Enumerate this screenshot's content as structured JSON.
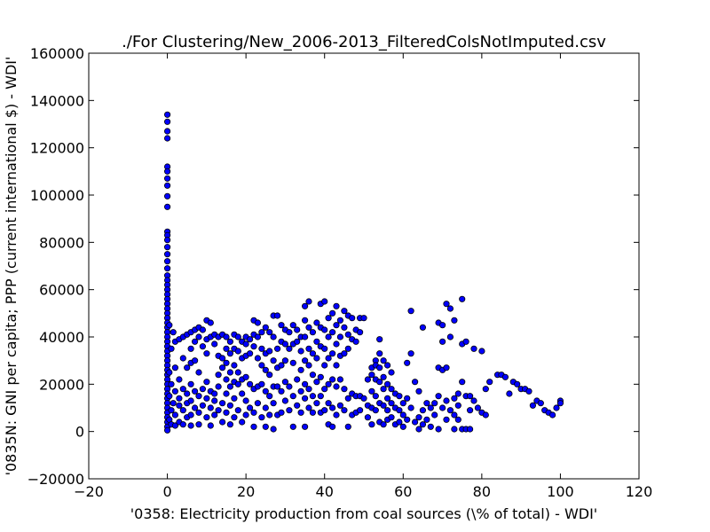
{
  "chart_data": {
    "type": "scatter",
    "title": "./For Clustering/New_2006-2013_FilteredColsNotImputed.csv",
    "xlabel": "'0358: Electricity production from coal sources  (\\% of total) - WDI'",
    "ylabel": "'0835N: GNI per capita; PPP  (current international $) - WDI'",
    "xlim": [
      -20,
      120
    ],
    "ylim": [
      -20000,
      160000
    ],
    "x_ticks": [
      "−20",
      "0",
      "20",
      "40",
      "60",
      "80",
      "100",
      "120"
    ],
    "y_ticks": [
      "−20000",
      "0",
      "20000",
      "40000",
      "60000",
      "80000",
      "100000",
      "120000",
      "140000",
      "160000"
    ],
    "grid": false,
    "legend": "none",
    "marker_color": "#0000ff",
    "marker_edge": "#000000",
    "points": [
      [
        0,
        134000
      ],
      [
        0,
        131000
      ],
      [
        0,
        127000
      ],
      [
        0,
        124000
      ],
      [
        0,
        112000
      ],
      [
        0,
        110000
      ],
      [
        0,
        107000
      ],
      [
        0,
        104000
      ],
      [
        0,
        99500
      ],
      [
        0,
        95000
      ],
      [
        0,
        84500
      ],
      [
        0,
        83000
      ],
      [
        0,
        81000
      ],
      [
        0,
        78000
      ],
      [
        0,
        75000
      ],
      [
        0,
        72000
      ],
      [
        0,
        69000
      ],
      [
        0,
        66000
      ],
      [
        0,
        64000
      ],
      [
        0,
        62000
      ],
      [
        0,
        60000
      ],
      [
        0,
        58000
      ],
      [
        0,
        56000
      ],
      [
        0,
        54000
      ],
      [
        0,
        52000
      ],
      [
        0,
        50000
      ],
      [
        0,
        48000
      ],
      [
        0,
        46000
      ],
      [
        0,
        44000
      ],
      [
        0,
        42000
      ],
      [
        0,
        40000
      ],
      [
        0,
        38000
      ],
      [
        0,
        36000
      ],
      [
        0,
        34000
      ],
      [
        0,
        32000
      ],
      [
        0,
        30000
      ],
      [
        0,
        28000
      ],
      [
        0,
        26000
      ],
      [
        0,
        24000
      ],
      [
        0,
        22000
      ],
      [
        0,
        20000
      ],
      [
        0,
        18000
      ],
      [
        0,
        16000
      ],
      [
        0,
        14000
      ],
      [
        0,
        12000
      ],
      [
        0,
        10000
      ],
      [
        0,
        8000
      ],
      [
        0,
        6000
      ],
      [
        0,
        4000
      ],
      [
        0,
        2000
      ],
      [
        0,
        500
      ],
      [
        0.5,
        45000
      ],
      [
        0.5,
        25000
      ],
      [
        0.5,
        15000
      ],
      [
        0.5,
        5000
      ],
      [
        1,
        35000
      ],
      [
        1,
        20000
      ],
      [
        1,
        9000
      ],
      [
        1,
        3000
      ],
      [
        1.5,
        42000
      ],
      [
        1.5,
        12000
      ],
      [
        2,
        38000
      ],
      [
        2,
        27000
      ],
      [
        2,
        17000
      ],
      [
        2,
        7000
      ],
      [
        2,
        2500
      ],
      [
        3,
        39000
      ],
      [
        3,
        22000
      ],
      [
        3,
        14000
      ],
      [
        3,
        11000
      ],
      [
        3,
        4000
      ],
      [
        4,
        40000
      ],
      [
        4,
        31000
      ],
      [
        4,
        18000
      ],
      [
        4,
        9000
      ],
      [
        4,
        3000
      ],
      [
        5,
        41000
      ],
      [
        5,
        27000
      ],
      [
        5,
        16000
      ],
      [
        5,
        12000
      ],
      [
        5,
        6000
      ],
      [
        6,
        42000
      ],
      [
        6,
        35000
      ],
      [
        6,
        29000
      ],
      [
        6,
        20000
      ],
      [
        6,
        13000
      ],
      [
        6,
        7000
      ],
      [
        6,
        2500
      ],
      [
        7,
        43000
      ],
      [
        7,
        38000
      ],
      [
        7,
        30000
      ],
      [
        7,
        17000
      ],
      [
        7,
        10000
      ],
      [
        8,
        44000
      ],
      [
        8,
        40000
      ],
      [
        8,
        25000
      ],
      [
        8,
        15000
      ],
      [
        8,
        8000
      ],
      [
        8,
        3000
      ],
      [
        9,
        43000
      ],
      [
        9,
        36000
      ],
      [
        9,
        18000
      ],
      [
        9,
        11000
      ],
      [
        10,
        47000
      ],
      [
        10,
        39000
      ],
      [
        10,
        33000
      ],
      [
        10,
        21000
      ],
      [
        10,
        14000
      ],
      [
        10,
        6000
      ],
      [
        11,
        46000
      ],
      [
        11,
        40000
      ],
      [
        11,
        17000
      ],
      [
        11,
        10000
      ],
      [
        11,
        2500
      ],
      [
        12,
        41000
      ],
      [
        12,
        37000
      ],
      [
        12,
        16000
      ],
      [
        12,
        13000
      ],
      [
        12,
        7000
      ],
      [
        13,
        40000
      ],
      [
        13,
        32000
      ],
      [
        13,
        24000
      ],
      [
        13,
        19000
      ],
      [
        13,
        9000
      ],
      [
        14,
        41000
      ],
      [
        14,
        31000
      ],
      [
        14,
        27000
      ],
      [
        14,
        12000
      ],
      [
        14,
        4000
      ],
      [
        15,
        40000
      ],
      [
        15,
        35000
      ],
      [
        15,
        29000
      ],
      [
        15,
        22000
      ],
      [
        15,
        16000
      ],
      [
        15,
        8000
      ],
      [
        16,
        38000
      ],
      [
        16,
        33000
      ],
      [
        16,
        25000
      ],
      [
        16,
        19000
      ],
      [
        16,
        11000
      ],
      [
        16,
        3000
      ],
      [
        17,
        41000
      ],
      [
        17,
        35000
      ],
      [
        17,
        28000
      ],
      [
        17,
        21000
      ],
      [
        17,
        14000
      ],
      [
        17,
        6000
      ],
      [
        18,
        40000
      ],
      [
        18,
        34000
      ],
      [
        18,
        25000
      ],
      [
        18,
        20000
      ],
      [
        18,
        9000
      ],
      [
        19,
        38000
      ],
      [
        19,
        31000
      ],
      [
        19,
        22000
      ],
      [
        19,
        16000
      ],
      [
        19,
        4000
      ],
      [
        20,
        40000
      ],
      [
        20,
        37000
      ],
      [
        20,
        32000
      ],
      [
        20,
        23000
      ],
      [
        20,
        13000
      ],
      [
        20,
        7000
      ],
      [
        21,
        39000
      ],
      [
        21,
        33000
      ],
      [
        21,
        20000
      ],
      [
        21,
        10000
      ],
      [
        22,
        47000
      ],
      [
        22,
        41000
      ],
      [
        22,
        36000
      ],
      [
        22,
        18000
      ],
      [
        22,
        8000
      ],
      [
        22,
        2000
      ],
      [
        23,
        46000
      ],
      [
        23,
        40000
      ],
      [
        23,
        31000
      ],
      [
        23,
        19000
      ],
      [
        23,
        12000
      ],
      [
        24,
        42000
      ],
      [
        24,
        35000
      ],
      [
        24,
        28000
      ],
      [
        24,
        20000
      ],
      [
        24,
        6000
      ],
      [
        25,
        44000
      ],
      [
        25,
        33000
      ],
      [
        25,
        26000
      ],
      [
        25,
        17000
      ],
      [
        25,
        10000
      ],
      [
        25,
        2000
      ],
      [
        26,
        42000
      ],
      [
        26,
        34000
      ],
      [
        26,
        24000
      ],
      [
        26,
        15000
      ],
      [
        26,
        7000
      ],
      [
        27,
        49000
      ],
      [
        27,
        40000
      ],
      [
        27,
        30000
      ],
      [
        27,
        19000
      ],
      [
        27,
        12000
      ],
      [
        27,
        1000
      ],
      [
        28,
        49000
      ],
      [
        28,
        35000
      ],
      [
        28,
        27000
      ],
      [
        28,
        19000
      ],
      [
        28,
        7000
      ],
      [
        29,
        45000
      ],
      [
        29,
        38000
      ],
      [
        29,
        28000
      ],
      [
        29,
        17000
      ],
      [
        29,
        8000
      ],
      [
        30,
        43000
      ],
      [
        30,
        37000
      ],
      [
        30,
        30000
      ],
      [
        30,
        21000
      ],
      [
        30,
        13000
      ],
      [
        31,
        42000
      ],
      [
        31,
        35000
      ],
      [
        31,
        19000
      ],
      [
        31,
        9000
      ],
      [
        32,
        45000
      ],
      [
        32,
        37000
      ],
      [
        32,
        29000
      ],
      [
        32,
        15000
      ],
      [
        32,
        2000
      ],
      [
        33,
        43000
      ],
      [
        33,
        38000
      ],
      [
        33,
        22000
      ],
      [
        33,
        11000
      ],
      [
        34,
        40000
      ],
      [
        34,
        34000
      ],
      [
        34,
        26000
      ],
      [
        34,
        17000
      ],
      [
        34,
        8000
      ],
      [
        35,
        53000
      ],
      [
        35,
        47000
      ],
      [
        35,
        40000
      ],
      [
        35,
        30000
      ],
      [
        35,
        20000
      ],
      [
        35,
        14000
      ],
      [
        35,
        2000
      ],
      [
        36,
        55000
      ],
      [
        36,
        44000
      ],
      [
        36,
        35000
      ],
      [
        36,
        28000
      ],
      [
        36,
        18000
      ],
      [
        36,
        10000
      ],
      [
        37,
        42000
      ],
      [
        37,
        33000
      ],
      [
        37,
        24000
      ],
      [
        37,
        15000
      ],
      [
        37,
        8000
      ],
      [
        38,
        46000
      ],
      [
        38,
        38000
      ],
      [
        38,
        31000
      ],
      [
        38,
        21000
      ],
      [
        38,
        12000
      ],
      [
        39,
        54000
      ],
      [
        39,
        44000
      ],
      [
        39,
        36000
      ],
      [
        39,
        23000
      ],
      [
        39,
        15000
      ],
      [
        39,
        8000
      ],
      [
        40,
        55000
      ],
      [
        40,
        43000
      ],
      [
        40,
        35000
      ],
      [
        40,
        28000
      ],
      [
        40,
        18000
      ],
      [
        40,
        9000
      ],
      [
        41,
        48000
      ],
      [
        41,
        40000
      ],
      [
        41,
        31000
      ],
      [
        41,
        20000
      ],
      [
        41,
        12000
      ],
      [
        41,
        3000
      ],
      [
        42,
        50000
      ],
      [
        42,
        42000
      ],
      [
        42,
        33000
      ],
      [
        42,
        22000
      ],
      [
        42,
        10000
      ],
      [
        42,
        2000
      ],
      [
        43,
        53000
      ],
      [
        43,
        45000
      ],
      [
        43,
        37000
      ],
      [
        43,
        28000
      ],
      [
        43,
        19000
      ],
      [
        43,
        7000
      ],
      [
        44,
        47000
      ],
      [
        44,
        40000
      ],
      [
        44,
        32000
      ],
      [
        44,
        22000
      ],
      [
        44,
        11000
      ],
      [
        45,
        51000
      ],
      [
        45,
        44000
      ],
      [
        45,
        33000
      ],
      [
        45,
        18000
      ],
      [
        45,
        9000
      ],
      [
        46,
        49000
      ],
      [
        46,
        41000
      ],
      [
        46,
        35000
      ],
      [
        46,
        14000
      ],
      [
        46,
        2000
      ],
      [
        47,
        48000
      ],
      [
        47,
        39000
      ],
      [
        47,
        16000
      ],
      [
        47,
        7000
      ],
      [
        48,
        43000
      ],
      [
        48,
        38000
      ],
      [
        48,
        15000
      ],
      [
        48,
        8000
      ],
      [
        49,
        48000
      ],
      [
        49,
        42000
      ],
      [
        49,
        15000
      ],
      [
        49,
        9000
      ],
      [
        50,
        48000
      ],
      [
        50,
        14000
      ],
      [
        51,
        22000
      ],
      [
        51,
        11000
      ],
      [
        51,
        6000
      ],
      [
        52,
        27000
      ],
      [
        52,
        24000
      ],
      [
        52,
        17000
      ],
      [
        52,
        10000
      ],
      [
        52,
        3000
      ],
      [
        53,
        30000
      ],
      [
        53,
        28000
      ],
      [
        53,
        22000
      ],
      [
        53,
        15000
      ],
      [
        53,
        9000
      ],
      [
        54,
        39000
      ],
      [
        54,
        33000
      ],
      [
        54,
        27000
      ],
      [
        54,
        21000
      ],
      [
        54,
        12000
      ],
      [
        54,
        4000
      ],
      [
        55,
        30000
      ],
      [
        55,
        23000
      ],
      [
        55,
        18000
      ],
      [
        55,
        11000
      ],
      [
        55,
        3000
      ],
      [
        56,
        28000
      ],
      [
        56,
        20000
      ],
      [
        56,
        14000
      ],
      [
        56,
        9000
      ],
      [
        56,
        5000
      ],
      [
        57,
        25000
      ],
      [
        57,
        18000
      ],
      [
        57,
        12000
      ],
      [
        57,
        6000
      ],
      [
        58,
        16000
      ],
      [
        58,
        10000
      ],
      [
        58,
        3000
      ],
      [
        59,
        15000
      ],
      [
        59,
        9000
      ],
      [
        59,
        4000
      ],
      [
        60,
        12000
      ],
      [
        60,
        7000
      ],
      [
        60,
        2000
      ],
      [
        61,
        29000
      ],
      [
        61,
        14000
      ],
      [
        61,
        5000
      ],
      [
        62,
        33000
      ],
      [
        62,
        51000
      ],
      [
        62,
        10000
      ],
      [
        63,
        21000
      ],
      [
        63,
        4000
      ],
      [
        64,
        17000
      ],
      [
        64,
        6000
      ],
      [
        64,
        1000
      ],
      [
        65,
        44000
      ],
      [
        65,
        9000
      ],
      [
        65,
        3000
      ],
      [
        66,
        12000
      ],
      [
        66,
        5000
      ],
      [
        67,
        10000
      ],
      [
        67,
        2000
      ],
      [
        68,
        12000
      ],
      [
        68,
        7000
      ],
      [
        69,
        46000
      ],
      [
        69,
        27000
      ],
      [
        69,
        15000
      ],
      [
        69,
        1000
      ],
      [
        70,
        45000
      ],
      [
        70,
        38000
      ],
      [
        70,
        26000
      ],
      [
        70,
        10000
      ],
      [
        71,
        54000
      ],
      [
        71,
        27000
      ],
      [
        71,
        13000
      ],
      [
        71,
        5000
      ],
      [
        72,
        52000
      ],
      [
        72,
        40000
      ],
      [
        72,
        9000
      ],
      [
        73,
        47000
      ],
      [
        73,
        14000
      ],
      [
        73,
        7000
      ],
      [
        73,
        1000
      ],
      [
        74,
        16000
      ],
      [
        74,
        11000
      ],
      [
        74,
        5000
      ],
      [
        75,
        56000
      ],
      [
        75,
        37000
      ],
      [
        75,
        21000
      ],
      [
        75,
        1000
      ],
      [
        76,
        38000
      ],
      [
        76,
        15000
      ],
      [
        76,
        1000
      ],
      [
        77,
        15000
      ],
      [
        77,
        9000
      ],
      [
        77,
        1000
      ],
      [
        78,
        35000
      ],
      [
        78,
        13000
      ],
      [
        79,
        10000
      ],
      [
        80,
        34000
      ],
      [
        80,
        8000
      ],
      [
        81,
        18000
      ],
      [
        81,
        7000
      ],
      [
        82,
        21000
      ],
      [
        84,
        24000
      ],
      [
        85,
        24000
      ],
      [
        86,
        23000
      ],
      [
        87,
        16000
      ],
      [
        88,
        21000
      ],
      [
        89,
        20000
      ],
      [
        90,
        18000
      ],
      [
        91,
        18000
      ],
      [
        92,
        17000
      ],
      [
        93,
        11000
      ],
      [
        94,
        13000
      ],
      [
        95,
        12000
      ],
      [
        96,
        9000
      ],
      [
        97,
        8000
      ],
      [
        98,
        7000
      ],
      [
        99,
        10000
      ],
      [
        100,
        13000
      ],
      [
        100,
        12000
      ]
    ]
  }
}
